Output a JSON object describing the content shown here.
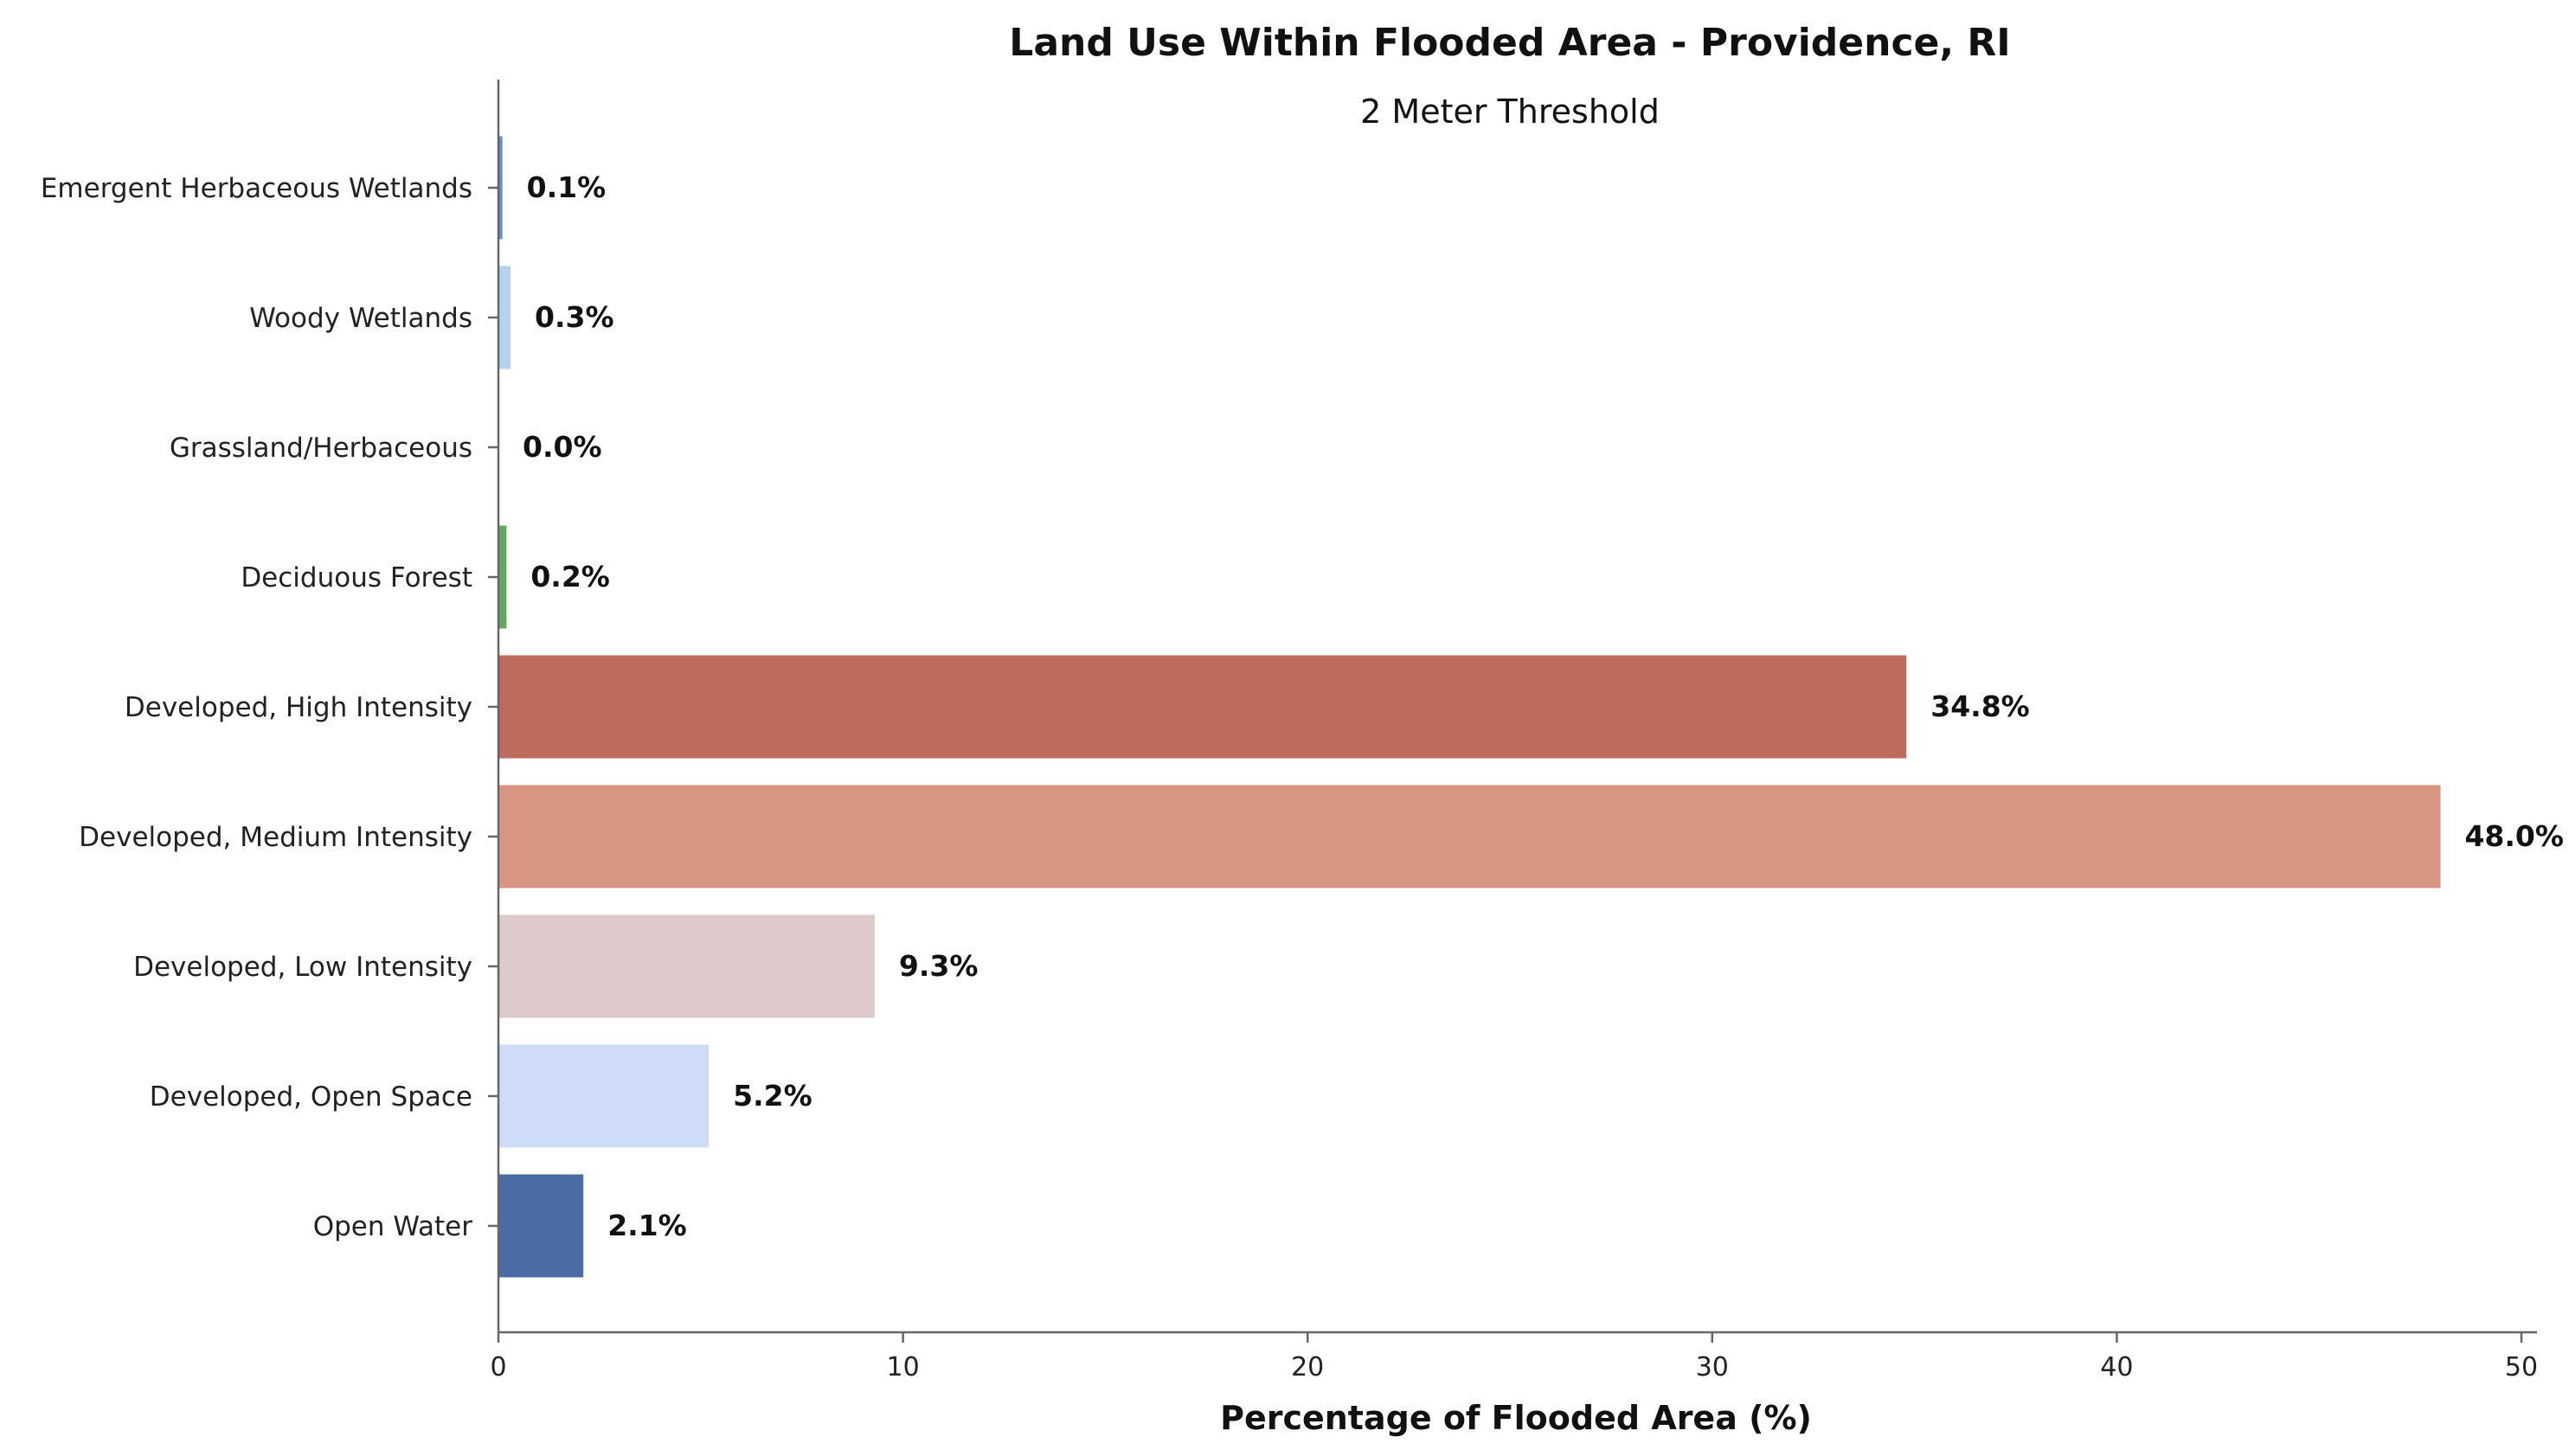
{
  "chart_data": {
    "type": "bar",
    "orientation": "horizontal",
    "title": "Land Use Within Flooded Area - Providence, RI",
    "subtitle": "2 Meter Threshold",
    "xlabel": "Percentage of Flooded Area (%)",
    "ylabel": "",
    "xlim": [
      0,
      50
    ],
    "xticks": [
      0,
      10,
      20,
      30,
      40,
      50
    ],
    "grid": false,
    "legend": "none",
    "categories": [
      "Emergent Herbaceous Wetlands",
      "Woody Wetlands",
      "Grassland/Herbaceous",
      "Deciduous Forest",
      "Developed, High Intensity",
      "Developed, Medium Intensity",
      "Developed, Low Intensity",
      "Developed, Open Space",
      "Open Water"
    ],
    "values": [
      0.1,
      0.3,
      0.0,
      0.2,
      34.8,
      48.0,
      9.3,
      5.2,
      2.1
    ],
    "value_labels": [
      "0.1%",
      "0.3%",
      "0.0%",
      "0.2%",
      "34.8%",
      "48.0%",
      "9.3%",
      "5.2%",
      "2.1%"
    ],
    "colors": [
      "#6b8fc4",
      "#b8d1ea",
      "#c9d9a8",
      "#62a85c",
      "#bd6b5d",
      "#d79582",
      "#decaca",
      "#cfdcf7",
      "#4a6ca3"
    ]
  }
}
